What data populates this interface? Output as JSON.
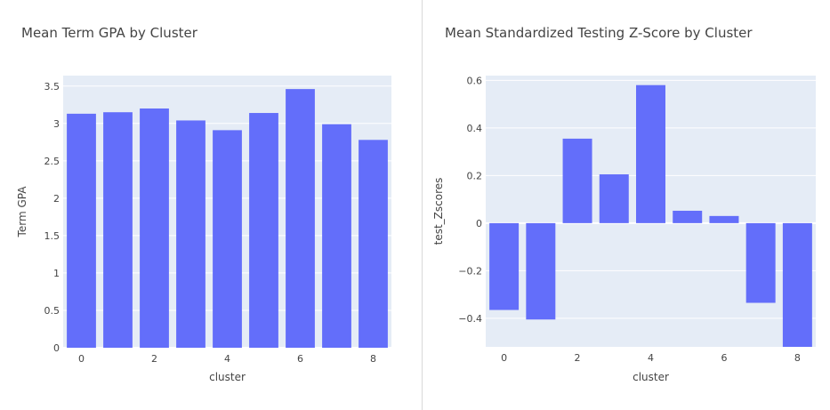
{
  "colors": {
    "bar": "#636efa",
    "plot_bg": "#e5ecf6",
    "grid": "#ffffff",
    "text": "#444444"
  },
  "chart_data": [
    {
      "type": "bar",
      "title": "Mean Term GPA by Cluster",
      "xlabel": "cluster",
      "ylabel": "Term GPA",
      "categories": [
        0,
        1,
        2,
        3,
        4,
        5,
        6,
        7,
        8
      ],
      "values": [
        3.13,
        3.15,
        3.2,
        3.04,
        2.91,
        3.14,
        3.46,
        2.99,
        2.78
      ],
      "xlim": [
        -0.5,
        8.5
      ],
      "ylim": [
        0,
        3.64
      ],
      "yticks": [
        0,
        0.5,
        1,
        1.5,
        2,
        2.5,
        3,
        3.5
      ],
      "ytick_labels": [
        "0",
        "0.5",
        "1",
        "1.5",
        "2",
        "2.5",
        "3",
        "3.5"
      ],
      "xticks": [
        0,
        2,
        4,
        6,
        8
      ],
      "xtick_labels": [
        "0",
        "2",
        "4",
        "6",
        "8"
      ],
      "grid": true,
      "legend": "none"
    },
    {
      "type": "bar",
      "title": "Mean Standardized Testing Z-Score by Cluster",
      "xlabel": "cluster",
      "ylabel": "test_Zscores",
      "categories": [
        0,
        1,
        2,
        3,
        4,
        5,
        6,
        7,
        8
      ],
      "values": [
        -0.365,
        -0.405,
        0.355,
        0.205,
        0.58,
        0.052,
        0.03,
        -0.335,
        -0.52
      ],
      "xlim": [
        -0.5,
        8.5
      ],
      "ylim": [
        -0.52,
        0.62
      ],
      "yticks": [
        -0.4,
        -0.2,
        0,
        0.2,
        0.4,
        0.6
      ],
      "ytick_labels": [
        "−0.4",
        "−0.2",
        "0",
        "0.2",
        "0.4",
        "0.6"
      ],
      "xticks": [
        0,
        2,
        4,
        6,
        8
      ],
      "xtick_labels": [
        "0",
        "2",
        "4",
        "6",
        "8"
      ],
      "grid": true,
      "legend": "none"
    }
  ]
}
